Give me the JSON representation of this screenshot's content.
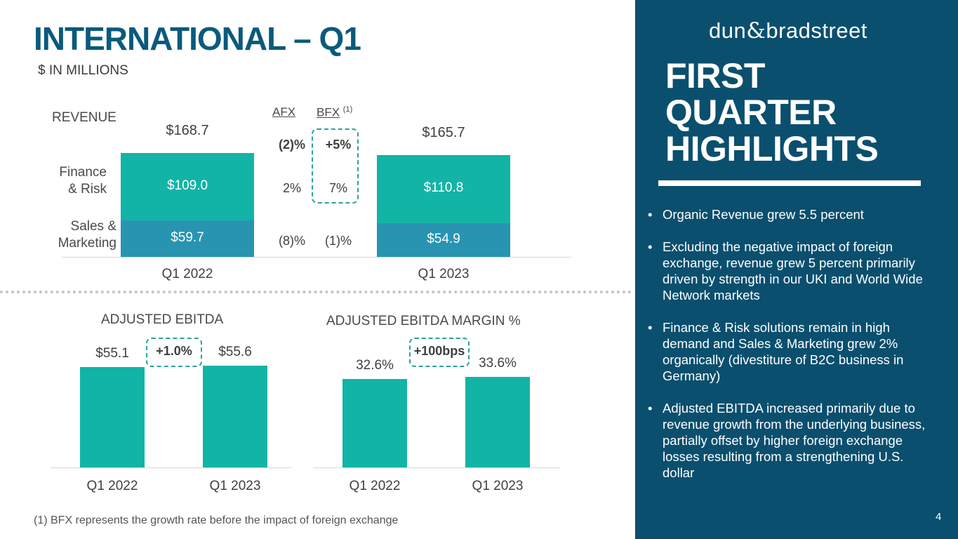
{
  "title": "INTERNATIONAL – Q1",
  "units": "$ IN MILLIONS",
  "colors": {
    "finance_risk": "#12b4a6",
    "sales_marketing": "#2894b2",
    "ebitda": "#12b4a6",
    "sidebar": "#0b4f6e",
    "title": "#0a5a7c",
    "dashed": "#2aa39a"
  },
  "revenue": {
    "label": "REVENUE",
    "row_labels": {
      "finance_risk": [
        "Finance",
        "& Risk"
      ],
      "sales_marketing": [
        "Sales &",
        "Marketing"
      ]
    },
    "afx_header": "AFX",
    "bfx_header": "BFX",
    "bfx_note": "(1)",
    "rows": [
      {
        "afx": "(2)%",
        "bfx": "+5%"
      },
      {
        "afx": "2%",
        "bfx": "7%"
      },
      {
        "afx": "(8)%",
        "bfx": "(1)%"
      }
    ]
  },
  "adjusted_ebitda": {
    "title": "ADJUSTED EBITDA",
    "change": "+1.0%"
  },
  "adjusted_ebitda_margin": {
    "title": "ADJUSTED EBITDA MARGIN %",
    "change": "+100bps"
  },
  "chart_data": [
    {
      "type": "bar",
      "stacked": true,
      "title": "REVENUE",
      "categories": [
        "Q1 2022",
        "Q1 2023"
      ],
      "series": [
        {
          "name": "Sales & Marketing",
          "values": [
            59.7,
            54.9
          ],
          "labels": [
            "$59.7",
            "$54.9"
          ]
        },
        {
          "name": "Finance & Risk",
          "values": [
            109.0,
            110.8
          ],
          "labels": [
            "$109.0",
            "$110.8"
          ]
        }
      ],
      "totals": [
        168.7,
        165.7
      ],
      "total_labels": [
        "$168.7",
        "$165.7"
      ]
    },
    {
      "type": "bar",
      "title": "ADJUSTED EBITDA",
      "categories": [
        "Q1 2022",
        "Q1 2023"
      ],
      "values": [
        55.1,
        55.6
      ],
      "labels": [
        "$55.1",
        "$55.6"
      ]
    },
    {
      "type": "bar",
      "title": "ADJUSTED EBITDA MARGIN %",
      "categories": [
        "Q1 2022",
        "Q1 2023"
      ],
      "values": [
        32.6,
        33.6
      ],
      "labels": [
        "32.6%",
        "33.6%"
      ]
    }
  ],
  "sidebar": {
    "brand_left": "dun",
    "brand_amp": "&",
    "brand_right": "bradstreet",
    "heading": [
      "FIRST",
      "QUARTER",
      "HIGHLIGHTS"
    ],
    "bullets": [
      "Organic Revenue grew 5.5 percent",
      "Excluding the negative impact of foreign exchange, revenue grew 5 percent primarily driven by strength in our UKI and World Wide Network markets",
      "Finance & Risk solutions remain in high demand and Sales & Marketing grew 2% organically (divestiture of B2C business in Germany)",
      "Adjusted EBITDA increased primarily due to revenue growth from the underlying business, partially offset by higher foreign exchange losses resulting from a strengthening U.S. dollar"
    ],
    "page_number": "4"
  },
  "footnote": "(1)  BFX represents the growth rate before the impact of foreign exchange"
}
